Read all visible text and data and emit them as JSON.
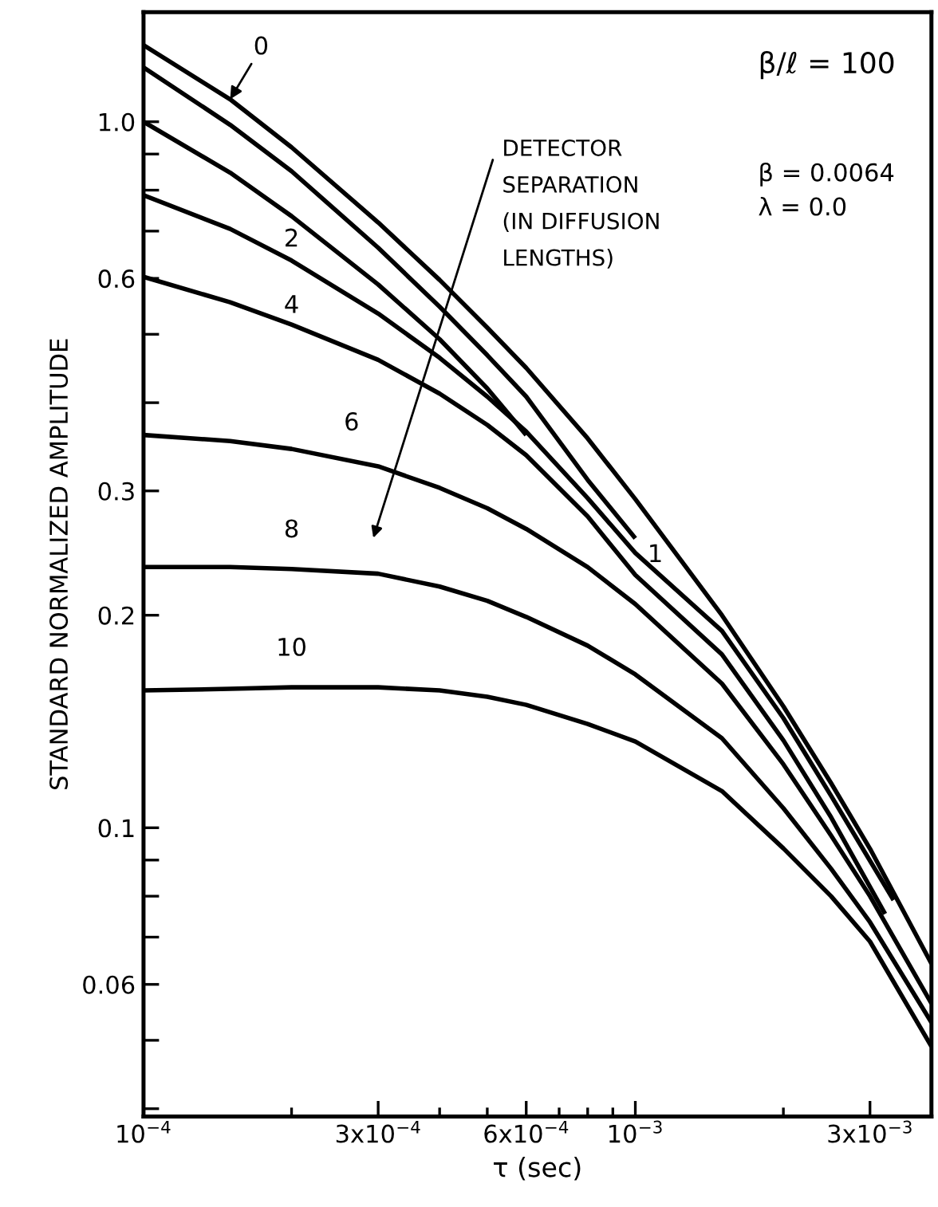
{
  "chart_data": {
    "type": "line",
    "xlabel": "τ (sec)",
    "ylabel": "STANDARD NORMALIZED AMPLITUDE",
    "log": "xy",
    "grid": false,
    "legend": false,
    "marker": "none",
    "line_style": "solid",
    "xlim": [
      0.0001,
      0.004
    ],
    "ylim": [
      0.039,
      1.43
    ],
    "xticks": [
      {
        "value": 0.0001,
        "label": "10$^{−4}$"
      },
      {
        "value": 0.0002,
        "label": null
      },
      {
        "value": 0.0003,
        "label": "3x10$^{−4}$"
      },
      {
        "value": 0.0004,
        "label": null
      },
      {
        "value": 0.0005,
        "label": null
      },
      {
        "value": 0.0006,
        "label": "6x10$^{−4}$"
      },
      {
        "value": 0.0007,
        "label": null
      },
      {
        "value": 0.0008,
        "label": null
      },
      {
        "value": 0.0009,
        "label": null
      },
      {
        "value": 0.001,
        "label": "10$^{−3}$"
      },
      {
        "value": 0.002,
        "label": null
      },
      {
        "value": 0.003,
        "label": "3x10$^{−3}$"
      }
    ],
    "yticks": [
      {
        "value": 0.04,
        "label": null
      },
      {
        "value": 0.05,
        "label": null
      },
      0.06,
      {
        "value": 0.07,
        "label": null
      },
      {
        "value": 0.08,
        "label": null
      },
      {
        "value": 0.09,
        "label": null
      },
      0.1,
      0.2,
      0.3,
      {
        "value": 0.4,
        "label": null
      },
      {
        "value": 0.5,
        "label": null
      },
      0.6,
      {
        "value": 0.7,
        "label": null
      },
      {
        "value": 0.8,
        "label": null
      },
      {
        "value": 0.9,
        "label": null
      },
      {
        "value": 1.0,
        "label": "1.0"
      }
    ],
    "series": [
      {
        "name": "0",
        "color": "#000000",
        "x": [
          0.0001,
          0.00015,
          0.0002,
          0.0003,
          0.0004,
          0.0005,
          0.0006,
          0.0008,
          0.001,
          0.0015,
          0.002,
          0.0025,
          0.003,
          0.004
        ],
        "values": [
          1.284,
          1.076,
          0.92,
          0.72,
          0.597,
          0.511,
          0.448,
          0.356,
          0.292,
          0.2,
          0.1486,
          0.1157,
          0.0934,
          0.0642
        ]
      },
      {
        "name": "1",
        "color": "#000000",
        "x": [
          0.0001,
          0.00015,
          0.0002,
          0.0003,
          0.0004,
          0.0005,
          0.0006,
          0.0008,
          0.001
        ],
        "values": [
          1.194,
          0.99,
          0.851,
          0.663,
          0.547,
          0.467,
          0.408,
          0.311,
          0.257
        ]
      },
      {
        "color": "#000000",
        "x": [
          0.0001,
          0.00015,
          0.0002,
          0.0003,
          0.0004,
          0.0005,
          0.0006
        ],
        "values": [
          1.0,
          0.847,
          0.735,
          0.588,
          0.492,
          0.419,
          0.36
        ]
      },
      {
        "name": "2",
        "color": "#000000",
        "x": [
          0.0001,
          0.00015,
          0.0002,
          0.0003,
          0.0004,
          0.0005,
          0.0006,
          0.0008,
          0.001,
          0.0015,
          0.002,
          0.0025,
          0.00335
        ],
        "values": [
          0.787,
          0.705,
          0.636,
          0.535,
          0.463,
          0.408,
          0.364,
          0.293,
          0.245,
          0.19,
          0.143,
          0.111,
          0.079
        ]
      },
      {
        "name": "4",
        "color": "#000000",
        "x": [
          0.0001,
          0.00015,
          0.0002,
          0.0003,
          0.0004,
          0.0005,
          0.0006,
          0.0008,
          0.001,
          0.0015,
          0.002,
          0.0025,
          0.00322
        ],
        "values": [
          0.603,
          0.555,
          0.516,
          0.46,
          0.412,
          0.372,
          0.337,
          0.276,
          0.228,
          0.176,
          0.133,
          0.1035,
          0.0755
        ]
      },
      {
        "name": "6",
        "color": "#000000",
        "x": [
          0.0001,
          0.00015,
          0.0002,
          0.0003,
          0.0004,
          0.0005,
          0.0006,
          0.0008,
          0.001,
          0.0015,
          0.002,
          0.0025,
          0.003,
          0.004
        ],
        "values": [
          0.36,
          0.353,
          0.344,
          0.325,
          0.303,
          0.2835,
          0.265,
          0.234,
          0.2074,
          0.16,
          0.123,
          0.0975,
          0.08,
          0.0564
        ]
      },
      {
        "name": "8",
        "color": "#000000",
        "x": [
          0.0001,
          0.00015,
          0.0002,
          0.0003,
          0.0004,
          0.0005,
          0.0006,
          0.0008,
          0.001,
          0.0015,
          0.002,
          0.0025,
          0.003,
          0.004
        ],
        "values": [
          0.234,
          0.234,
          0.2325,
          0.229,
          0.2196,
          0.2096,
          0.1989,
          0.1811,
          0.1649,
          0.1339,
          0.1066,
          0.0875,
          0.0735,
          0.053
        ]
      },
      {
        "name": "10",
        "color": "#000000",
        "x": [
          0.0001,
          0.00015,
          0.0002,
          0.0003,
          0.0004,
          0.0005,
          0.0006,
          0.0008,
          0.001,
          0.0015,
          0.002,
          0.0025,
          0.003,
          0.004
        ],
        "values": [
          0.1565,
          0.1573,
          0.1581,
          0.1581,
          0.1565,
          0.1533,
          0.1493,
          0.1403,
          0.1325,
          0.1127,
          0.0935,
          0.08,
          0.069,
          0.049
        ]
      }
    ],
    "annotations": [
      "β/ℓ = 100",
      "β = 0.0064",
      "λ = 0.0",
      "DETECTOR SEPARATION (IN DIFFUSION LENGTHS)"
    ]
  }
}
